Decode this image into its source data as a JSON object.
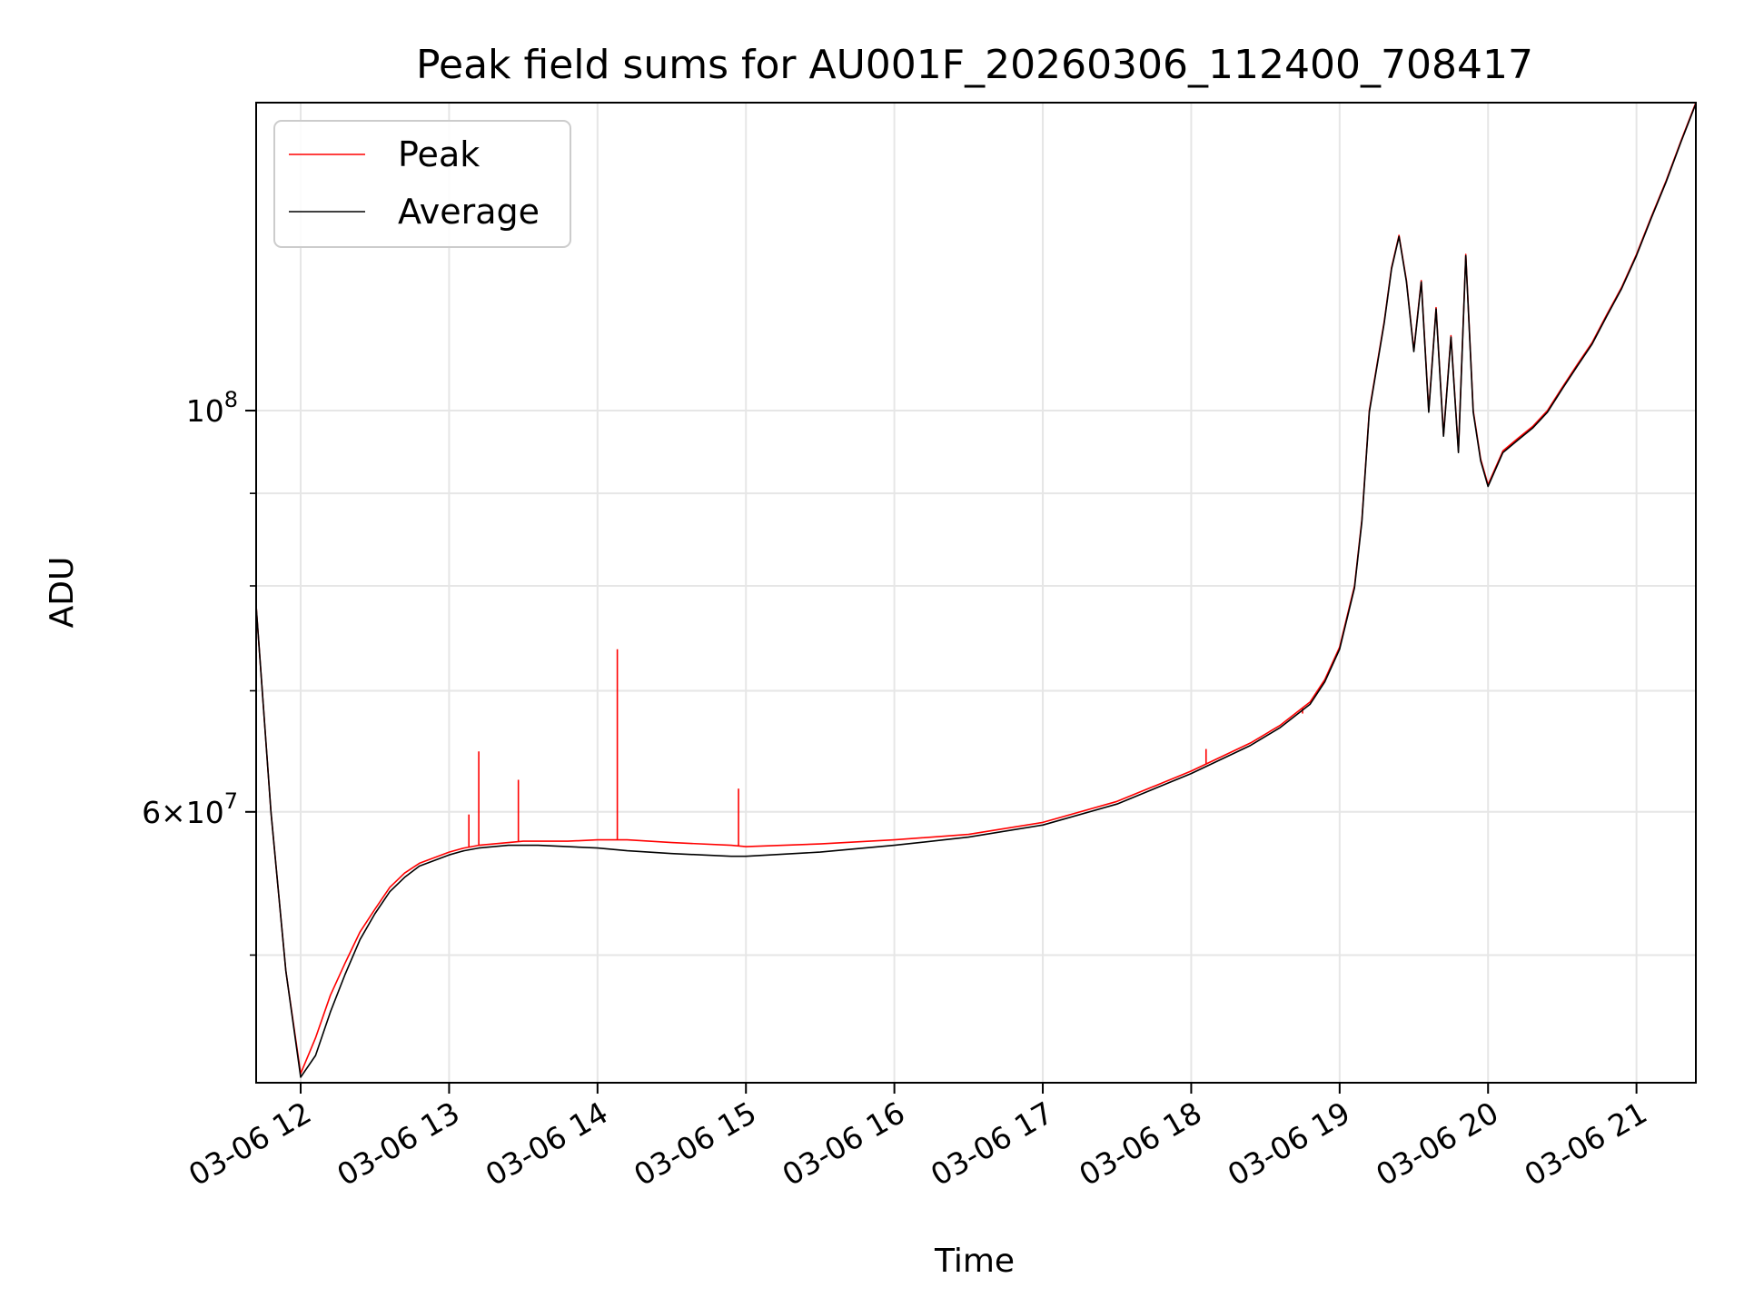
{
  "chart_data": {
    "type": "line",
    "title": "Peak field sums for AU001F_20260306_112400_708417",
    "xlabel": "Time",
    "ylabel": "ADU",
    "yscale": "log",
    "grid": true,
    "legend_position": "top-left",
    "x_range": [
      "03-06 11:42",
      "03-06 21:24"
    ],
    "y_range": [
      42500000,
      148000000
    ],
    "x_ticks": [
      "03-06 12",
      "03-06 13",
      "03-06 14",
      "03-06 15",
      "03-06 16",
      "03-06 17",
      "03-06 18",
      "03-06 19",
      "03-06 20",
      "03-06 21"
    ],
    "y_major_ticks": [
      {
        "value": 100000000,
        "mantissa": "",
        "base": "10",
        "exponent": "8"
      },
      {
        "value": 60000000,
        "mantissa": "6×",
        "base": "10",
        "exponent": "7"
      }
    ],
    "y_minor_ticks": [
      50000000,
      70000000,
      80000000,
      90000000
    ],
    "series": [
      {
        "name": "Peak",
        "color": "#ff0000",
        "x": [
          "03-06 11:42",
          "03-06 11:48",
          "03-06 11:54",
          "03-06 12:00",
          "03-06 12:06",
          "03-06 12:12",
          "03-06 12:18",
          "03-06 12:24",
          "03-06 12:30",
          "03-06 12:36",
          "03-06 12:42",
          "03-06 12:48",
          "03-06 13:00",
          "03-06 13:06",
          "03-06 13:12",
          "03-06 13:18",
          "03-06 13:24",
          "03-06 13:30",
          "03-06 13:36",
          "03-06 13:48",
          "03-06 14:00",
          "03-06 14:06",
          "03-06 14:12",
          "03-06 14:30",
          "03-06 14:54",
          "03-06 15:00",
          "03-06 15:30",
          "03-06 16:00",
          "03-06 16:30",
          "03-06 17:00",
          "03-06 17:30",
          "03-06 18:00",
          "03-06 18:24",
          "03-06 18:36",
          "03-06 18:48",
          "03-06 18:54",
          "03-06 19:00",
          "03-06 19:06",
          "03-06 19:09",
          "03-06 19:12",
          "03-06 19:18",
          "03-06 19:21",
          "03-06 19:24",
          "03-06 19:27",
          "03-06 19:30",
          "03-06 19:33",
          "03-06 19:36",
          "03-06 19:39",
          "03-06 19:42",
          "03-06 19:45",
          "03-06 19:48",
          "03-06 19:51",
          "03-06 19:54",
          "03-06 19:57",
          "03-06 20:00",
          "03-06 20:06",
          "03-06 20:12",
          "03-06 20:18",
          "03-06 20:24",
          "03-06 20:30",
          "03-06 20:36",
          "03-06 20:42",
          "03-06 20:48",
          "03-06 20:54",
          "03-06 21:00",
          "03-06 21:06",
          "03-06 21:12",
          "03-06 21:18",
          "03-06 21:24"
        ],
        "y": [
          78000000,
          60000000,
          49000000,
          43000000,
          45000000,
          47500000,
          49500000,
          51500000,
          53000000,
          54500000,
          55500000,
          56200000,
          57000000,
          57300000,
          57500000,
          57600000,
          57700000,
          57800000,
          57800000,
          57800000,
          57900000,
          57900000,
          57900000,
          57700000,
          57500000,
          57400000,
          57600000,
          57900000,
          58300000,
          59200000,
          60800000,
          63200000,
          65500000,
          67000000,
          69000000,
          71000000,
          74000000,
          80000000,
          87000000,
          100000000,
          112000000,
          120000000,
          125000000,
          118000000,
          108000000,
          118000000,
          100000000,
          114000000,
          97000000,
          110000000,
          95000000,
          122000000,
          100000000,
          94000000,
          91000000,
          95000000,
          96500000,
          98000000,
          100000000,
          103000000,
          106000000,
          109000000,
          113000000,
          117000000,
          122000000,
          128000000,
          134000000,
          141000000,
          148000000
        ],
        "spikes": [
          {
            "x": "03-06 13:08",
            "y": 59800000
          },
          {
            "x": "03-06 13:12",
            "y": 64800000
          },
          {
            "x": "03-06 13:28",
            "y": 62500000
          },
          {
            "x": "03-06 14:08",
            "y": 73800000
          },
          {
            "x": "03-06 14:57",
            "y": 61800000
          },
          {
            "x": "03-06 18:06",
            "y": 65000000
          },
          {
            "x": "03-06 18:45",
            "y": 68000000
          }
        ]
      },
      {
        "name": "Average",
        "color": "#000000",
        "x": [
          "03-06 11:42",
          "03-06 11:48",
          "03-06 11:54",
          "03-06 12:00",
          "03-06 12:06",
          "03-06 12:12",
          "03-06 12:18",
          "03-06 12:24",
          "03-06 12:30",
          "03-06 12:36",
          "03-06 12:42",
          "03-06 12:48",
          "03-06 13:00",
          "03-06 13:06",
          "03-06 13:12",
          "03-06 13:18",
          "03-06 13:24",
          "03-06 13:30",
          "03-06 13:36",
          "03-06 13:48",
          "03-06 14:00",
          "03-06 14:06",
          "03-06 14:12",
          "03-06 14:30",
          "03-06 14:54",
          "03-06 15:00",
          "03-06 15:30",
          "03-06 16:00",
          "03-06 16:30",
          "03-06 17:00",
          "03-06 17:30",
          "03-06 18:00",
          "03-06 18:24",
          "03-06 18:36",
          "03-06 18:48",
          "03-06 18:54",
          "03-06 19:00",
          "03-06 19:06",
          "03-06 19:09",
          "03-06 19:12",
          "03-06 19:18",
          "03-06 19:21",
          "03-06 19:24",
          "03-06 19:27",
          "03-06 19:30",
          "03-06 19:33",
          "03-06 19:36",
          "03-06 19:39",
          "03-06 19:42",
          "03-06 19:45",
          "03-06 19:48",
          "03-06 19:51",
          "03-06 19:54",
          "03-06 19:57",
          "03-06 20:00",
          "03-06 20:06",
          "03-06 20:12",
          "03-06 20:18",
          "03-06 20:24",
          "03-06 20:30",
          "03-06 20:36",
          "03-06 20:42",
          "03-06 20:48",
          "03-06 20:54",
          "03-06 21:00",
          "03-06 21:06",
          "03-06 21:12",
          "03-06 21:18",
          "03-06 21:24"
        ],
        "y": [
          78000000,
          60000000,
          49000000,
          42800000,
          44000000,
          46500000,
          48800000,
          51000000,
          52700000,
          54200000,
          55200000,
          56000000,
          56800000,
          57100000,
          57300000,
          57400000,
          57500000,
          57500000,
          57500000,
          57400000,
          57300000,
          57200000,
          57100000,
          56900000,
          56700000,
          56700000,
          57000000,
          57500000,
          58100000,
          59000000,
          60600000,
          63000000,
          65300000,
          66800000,
          68800000,
          70800000,
          73800000,
          79800000,
          86800000,
          99800000,
          111800000,
          119800000,
          124800000,
          117800000,
          107800000,
          117800000,
          99800000,
          113800000,
          96800000,
          109800000,
          94800000,
          121800000,
          99800000,
          93800000,
          90800000,
          94800000,
          96300000,
          97800000,
          99800000,
          102800000,
          105800000,
          108800000,
          112800000,
          116800000,
          121800000,
          127800000,
          133800000,
          140800000,
          147800000
        ]
      }
    ]
  }
}
